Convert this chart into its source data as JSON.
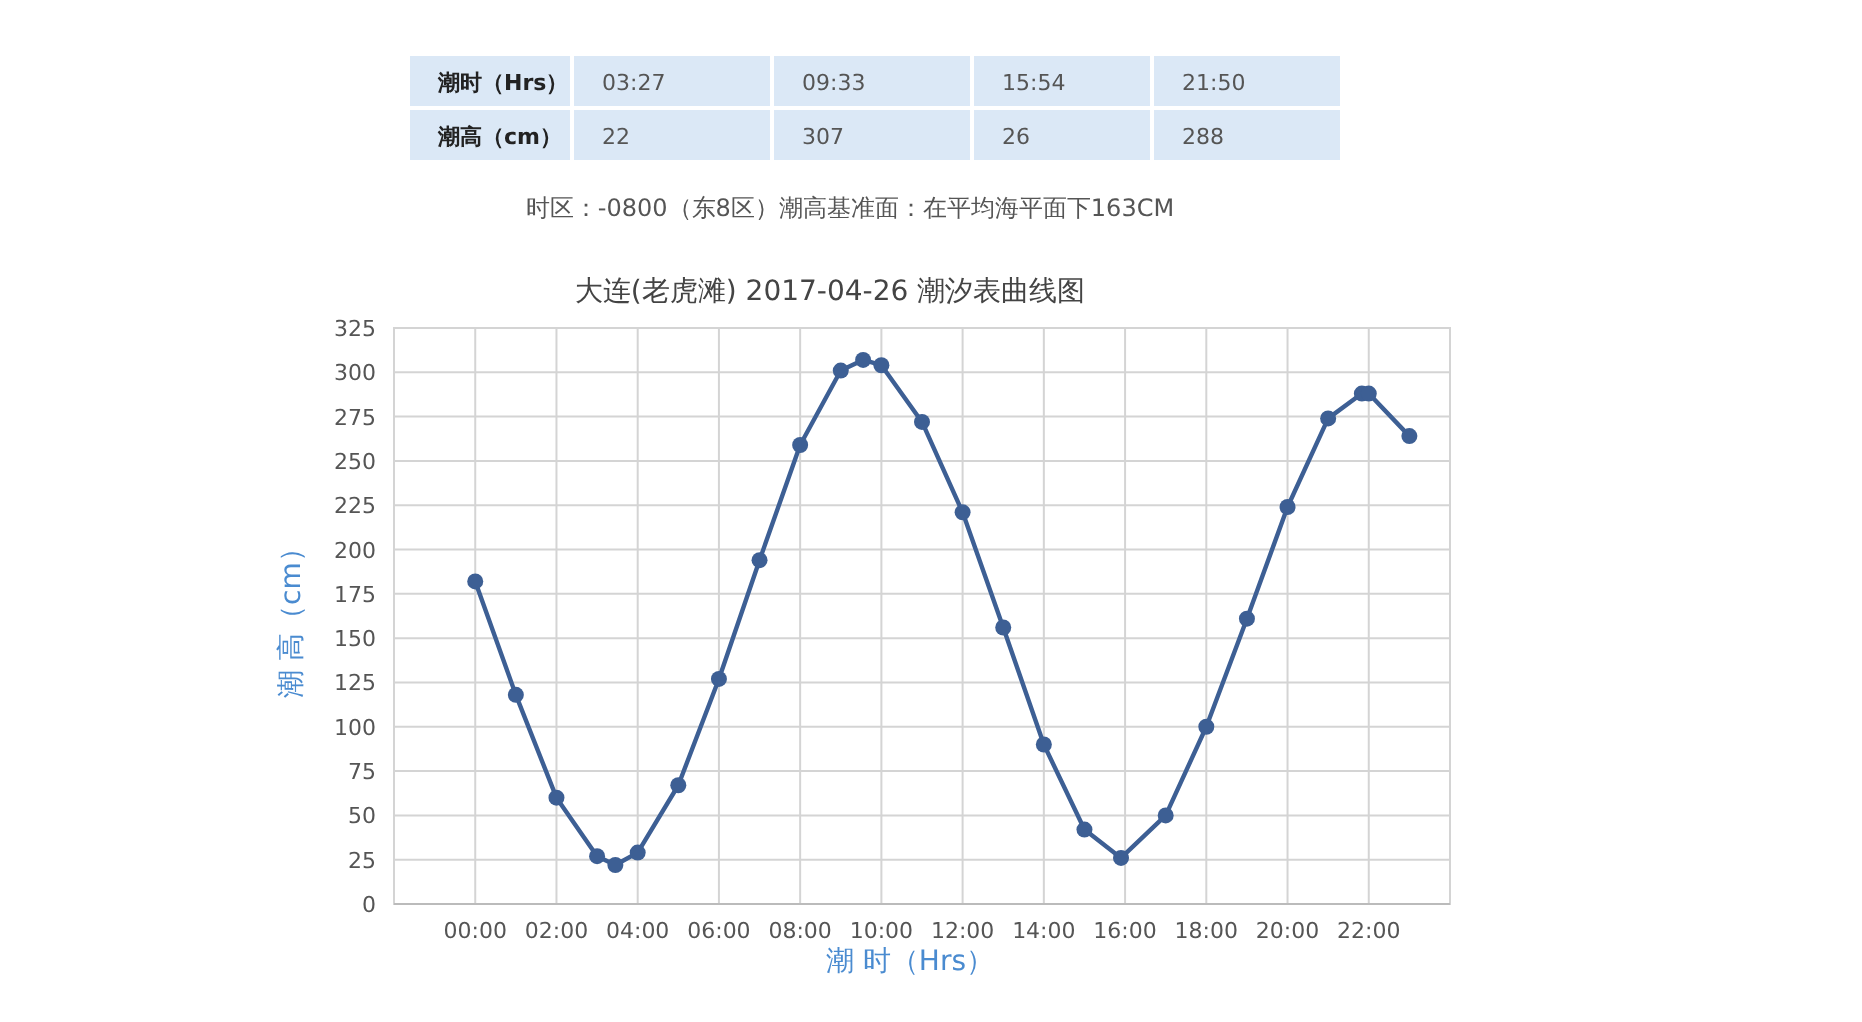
{
  "chart_data": {
    "type": "line",
    "title": "大连(老虎滩) 2017-04-26 潮汐表曲线图",
    "xlabel": "潮 时（Hrs）",
    "ylabel": "潮 高（cm）",
    "annotations": [
      "潮时（Hrs）",
      "03:27",
      "09:33",
      "15:54",
      "21:50",
      "潮高（cm）",
      "22",
      "307",
      "26",
      "288",
      "时区：-0800（东8区）潮高基准面：在平均海平面下163CM"
    ],
    "x": [
      0,
      1,
      2,
      3,
      3.45,
      4,
      5,
      6,
      7,
      8,
      9,
      9.55,
      10,
      11,
      12,
      13,
      14,
      15,
      15.9,
      16,
      17,
      18,
      19,
      20,
      21,
      21.83,
      22,
      23
    ],
    "series": [
      {
        "color": "#3d5f94",
        "values": [
          182,
          118,
          60,
          27,
          22,
          29,
          67,
          127,
          194,
          259,
          301,
          307,
          304,
          272,
          221,
          156,
          90,
          42,
          26,
          null,
          50,
          100,
          161,
          224,
          274,
          288,
          288,
          264
        ]
      }
    ],
    "xlim": [
      -2,
      24
    ],
    "xticks": [
      {
        "value": 0,
        "label": "00:00"
      },
      {
        "value": 2,
        "label": "02:00"
      },
      {
        "value": 4,
        "label": "04:00"
      },
      {
        "value": 6,
        "label": "06:00"
      },
      {
        "value": 8,
        "label": "08:00"
      },
      {
        "value": 10,
        "label": "10:00"
      },
      {
        "value": 12,
        "label": "12:00"
      },
      {
        "value": 14,
        "label": "14:00"
      },
      {
        "value": 16,
        "label": "16:00"
      },
      {
        "value": 18,
        "label": "18:00"
      },
      {
        "value": 20,
        "label": "20:00"
      },
      {
        "value": 22,
        "label": "22:00"
      }
    ],
    "ylim": [
      0,
      325
    ],
    "yticks": [
      0,
      25,
      50,
      75,
      100,
      125,
      150,
      175,
      200,
      225,
      250,
      275,
      300,
      325
    ],
    "grid": true,
    "marker": "circle",
    "line_style": "solid"
  }
}
